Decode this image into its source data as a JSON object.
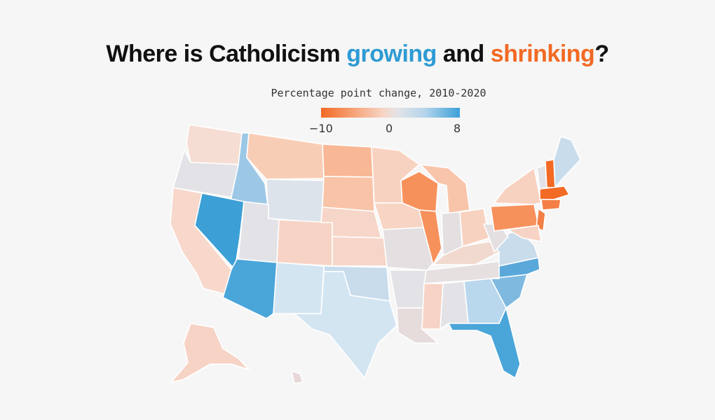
{
  "title": {
    "part1": "Where is Catholicism ",
    "growing": "growing",
    "part2": " and ",
    "shrinking": "shrinking",
    "part3": "?"
  },
  "legend": {
    "subtitle": "Percentage point change, 2010-2020",
    "min_label": "−10",
    "mid_label": "0",
    "max_label": "8",
    "min_color": "#f26a24",
    "max_color": "#3ca0d8"
  },
  "colors": {
    "growing": "#2e9bd3",
    "shrinking": "#f26a24",
    "background": "#f6f6f6"
  }
}
